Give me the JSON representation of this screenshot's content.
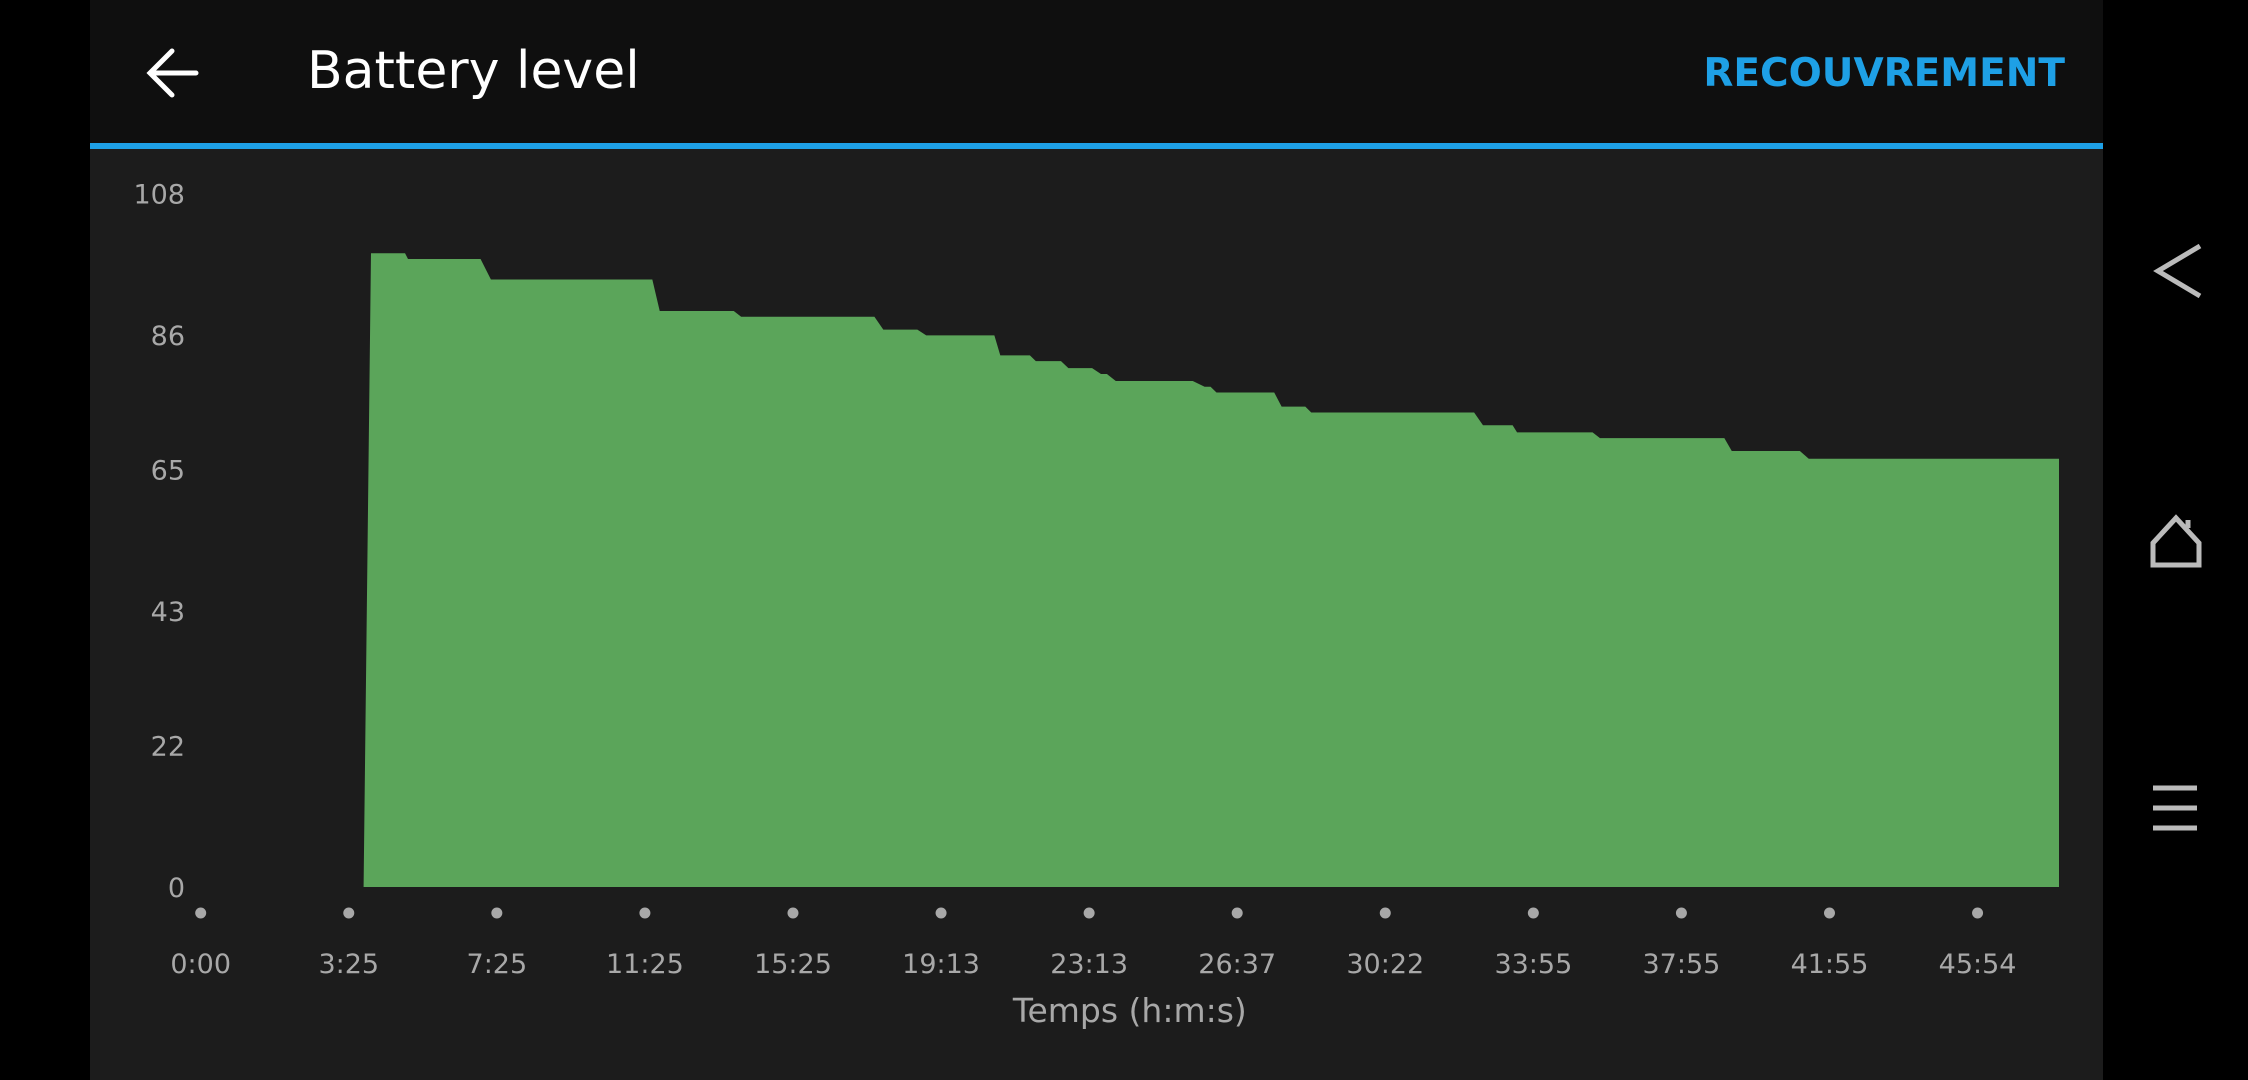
{
  "header": {
    "title": "Battery level",
    "action": "RECOUVREMENT"
  },
  "chart_data": {
    "type": "area",
    "x_label": "Temps (h:m:s)",
    "color": "#5ba55a",
    "xlim": [
      0,
      12.55
    ],
    "xticks": [
      {
        "value": 0,
        "label": "0:00"
      },
      {
        "value": 1,
        "label": "3:25"
      },
      {
        "value": 2,
        "label": "7:25"
      },
      {
        "value": 3,
        "label": "11:25"
      },
      {
        "value": 4,
        "label": "15:25"
      },
      {
        "value": 5,
        "label": "19:13"
      },
      {
        "value": 6,
        "label": "23:13"
      },
      {
        "value": 7,
        "label": "26:37"
      },
      {
        "value": 8,
        "label": "30:22"
      },
      {
        "value": 9,
        "label": "33:55"
      },
      {
        "value": 10,
        "label": "37:55"
      },
      {
        "value": 11,
        "label": "41:55"
      },
      {
        "value": 12,
        "label": "45:54"
      }
    ],
    "ylim": [
      0,
      108
    ],
    "yticks": [
      0,
      22,
      43,
      65,
      86,
      108
    ],
    "x": [
      1.1,
      1.15,
      1.38,
      1.4,
      1.89,
      1.96,
      3.05,
      3.1,
      3.6,
      3.65,
      4.55,
      4.61,
      4.84,
      4.9,
      5.36,
      5.4,
      5.6,
      5.64,
      5.81,
      5.86,
      6.02,
      6.08,
      6.12,
      6.18,
      6.7,
      6.78,
      6.82,
      6.86,
      7.25,
      7.3,
      7.46,
      7.5,
      8.6,
      8.66,
      8.86,
      8.89,
      9.4,
      9.45,
      10.29,
      10.34,
      10.8,
      10.86,
      12.55
    ],
    "values": [
      0,
      98.7,
      98.7,
      97.8,
      97.8,
      94.6,
      94.6,
      89.7,
      89.7,
      88.8,
      88.8,
      86.8,
      86.8,
      85.9,
      85.9,
      82.8,
      82.8,
      81.9,
      81.9,
      80.8,
      80.8,
      79.9,
      79.9,
      78.8,
      78.8,
      77.9,
      77.9,
      77.0,
      77.0,
      74.8,
      74.8,
      73.9,
      73.9,
      71.9,
      71.9,
      70.8,
      70.8,
      69.9,
      69.9,
      67.9,
      67.9,
      66.7,
      66.7
    ]
  }
}
